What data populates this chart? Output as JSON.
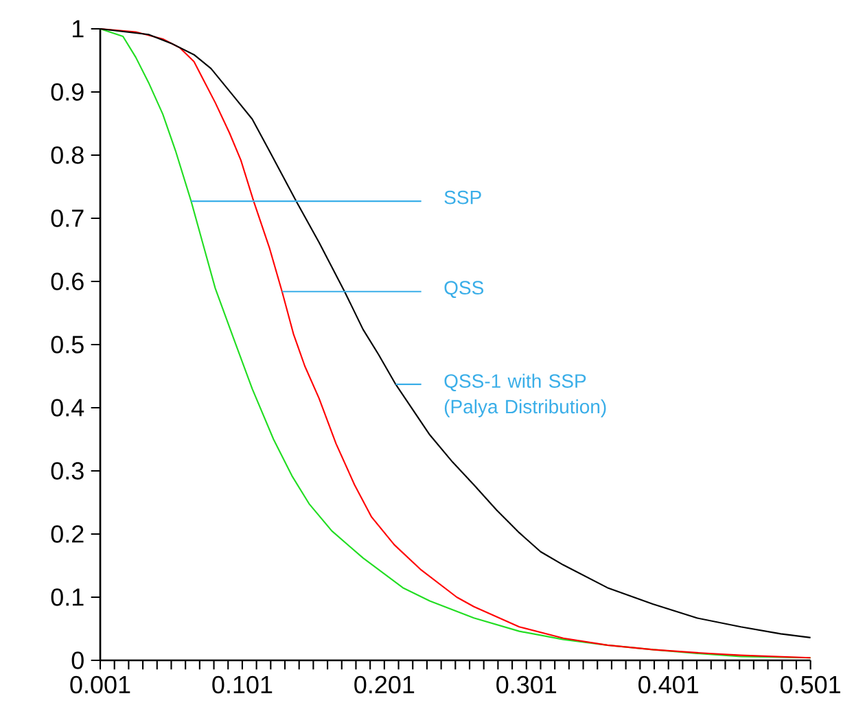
{
  "chart_data": {
    "type": "line",
    "xlim": [
      0.001,
      0.501
    ],
    "ylim": [
      0,
      1
    ],
    "xticks": [
      0.001,
      0.101,
      0.201,
      0.301,
      0.401,
      0.501
    ],
    "yticks": [
      0,
      0.1,
      0.2,
      0.3,
      0.4,
      0.5,
      0.6,
      0.7,
      0.8,
      0.9,
      1
    ],
    "grid": false,
    "marker": "none",
    "line_style": "solid",
    "series": [
      {
        "color": "#22dd22",
        "x": [
          0.001,
          0.017,
          0.026,
          0.035,
          0.045,
          0.054,
          0.065,
          0.073,
          0.082,
          0.095,
          0.108,
          0.123,
          0.136,
          0.148,
          0.164,
          0.186,
          0.214,
          0.233,
          0.264,
          0.296,
          0.327,
          0.358,
          0.39,
          0.421,
          0.452,
          0.501
        ],
        "values": [
          1.0,
          0.988,
          0.955,
          0.915,
          0.865,
          0.807,
          0.727,
          0.662,
          0.589,
          0.509,
          0.43,
          0.35,
          0.292,
          0.248,
          0.205,
          0.162,
          0.115,
          0.094,
          0.067,
          0.046,
          0.033,
          0.024,
          0.017,
          0.011,
          0.006,
          0.004
        ]
      },
      {
        "color": "#ff0000",
        "x": [
          0.001,
          0.026,
          0.045,
          0.057,
          0.067,
          0.073,
          0.082,
          0.092,
          0.1,
          0.109,
          0.12,
          0.129,
          0.137,
          0.145,
          0.155,
          0.167,
          0.18,
          0.192,
          0.208,
          0.227,
          0.252,
          0.264,
          0.296,
          0.327,
          0.358,
          0.39,
          0.421,
          0.452,
          0.501
        ],
        "values": [
          1.0,
          0.995,
          0.984,
          0.97,
          0.948,
          0.922,
          0.883,
          0.835,
          0.792,
          0.727,
          0.654,
          0.584,
          0.517,
          0.466,
          0.415,
          0.343,
          0.278,
          0.227,
          0.183,
          0.143,
          0.1,
          0.085,
          0.053,
          0.035,
          0.024,
          0.017,
          0.012,
          0.008,
          0.004
        ]
      },
      {
        "color": "#000000",
        "x": [
          0.001,
          0.035,
          0.051,
          0.067,
          0.079,
          0.095,
          0.108,
          0.12,
          0.139,
          0.155,
          0.173,
          0.186,
          0.197,
          0.209,
          0.233,
          0.249,
          0.264,
          0.28,
          0.296,
          0.311,
          0.327,
          0.358,
          0.39,
          0.421,
          0.452,
          0.48,
          0.501
        ],
        "values": [
          1.0,
          0.991,
          0.977,
          0.959,
          0.937,
          0.893,
          0.857,
          0.807,
          0.727,
          0.662,
          0.584,
          0.524,
          0.484,
          0.437,
          0.357,
          0.314,
          0.278,
          0.238,
          0.202,
          0.172,
          0.151,
          0.115,
          0.089,
          0.067,
          0.053,
          0.042,
          0.036
        ]
      }
    ],
    "annotations": [
      {
        "text": "SSP",
        "x": 0.065,
        "y": 0.727
      },
      {
        "text": "QSS",
        "x": 0.129,
        "y": 0.584
      },
      {
        "text": "QSS-1 with SSP (Palya Distribution)",
        "x": 0.209,
        "y": 0.437
      }
    ]
  }
}
